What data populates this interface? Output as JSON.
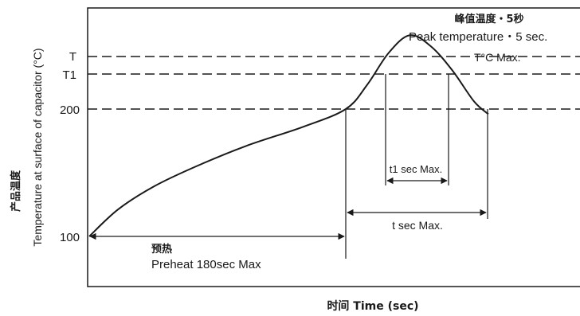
{
  "chart_data": {
    "type": "line",
    "title_cn": "峰值温度・5秒",
    "title_en": "Peak temperature・5 sec.",
    "ylabel_cn": "产品温度",
    "ylabel_en": "Temperature at surface of capacitor (°C)",
    "xlabel": "时间  Time (sec)",
    "y_ticks": [
      "T",
      "T1",
      "200",
      "100"
    ],
    "reference_lines": [
      "T",
      "T1",
      "200"
    ],
    "curve_labels": {
      "peak": "T°C Max.",
      "t1_window": "t1 sec Max.",
      "t_window": "t sec Max.",
      "preheat_cn": "预热",
      "preheat_en": "Preheat 180sec Max"
    },
    "series": [
      {
        "points": [
          {
            "x": 0,
            "y": 100
          },
          {
            "x": 20,
            "y": 121
          },
          {
            "x": 45,
            "y": 139
          },
          {
            "x": 75,
            "y": 155
          },
          {
            "x": 110,
            "y": 171
          },
          {
            "x": 150,
            "y": 186
          },
          {
            "x": 180,
            "y": 200
          },
          {
            "x": 195,
            "y": 219
          },
          {
            "x": 210,
            "y": 244
          },
          {
            "x": 225,
            "y": 258
          },
          {
            "x": 240,
            "y": 249
          },
          {
            "x": 255,
            "y": 230
          },
          {
            "x": 270,
            "y": 206
          },
          {
            "x": 280,
            "y": 196
          }
        ]
      }
    ]
  }
}
